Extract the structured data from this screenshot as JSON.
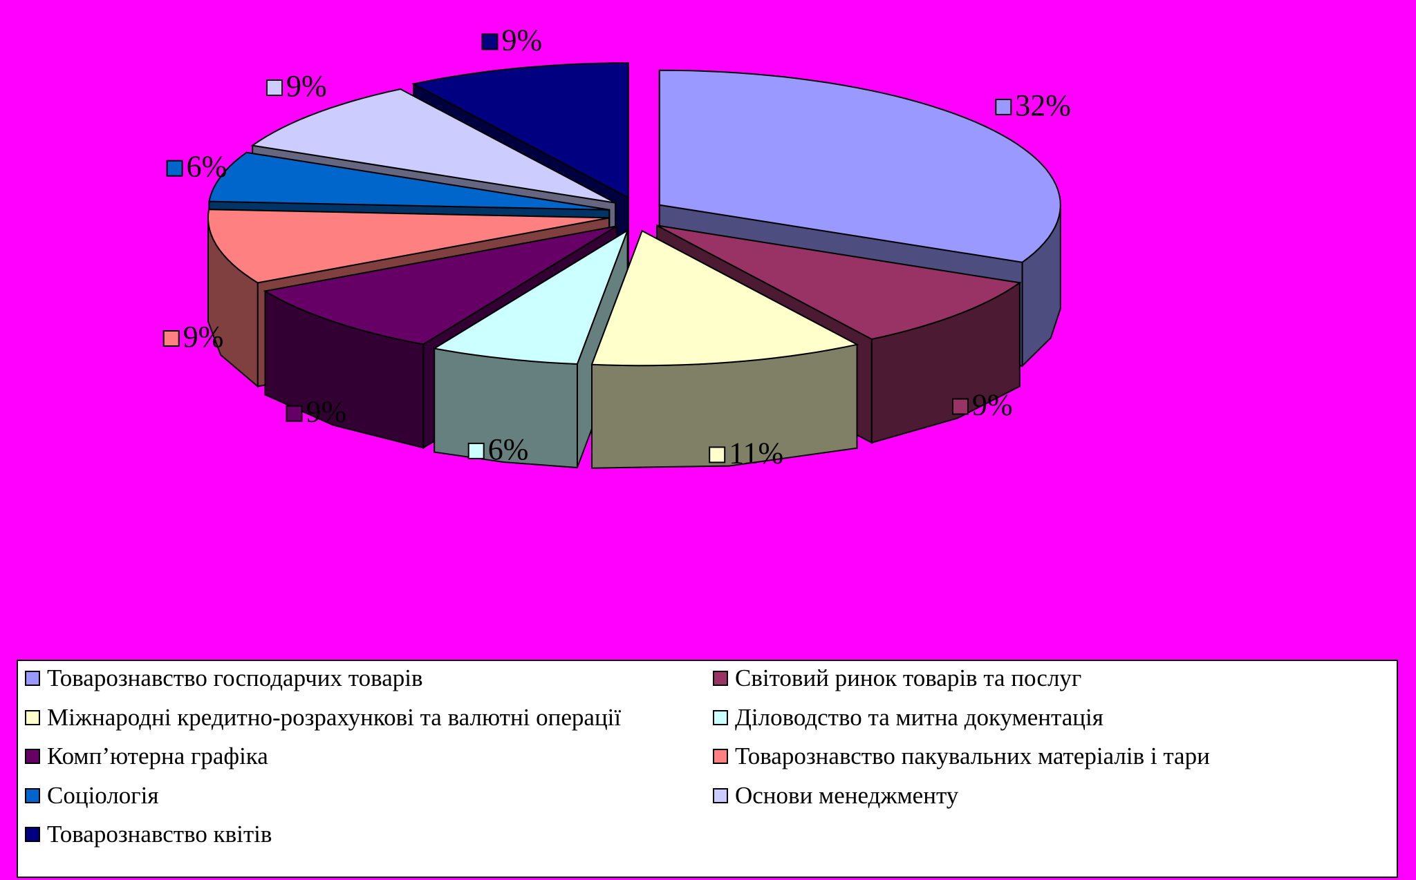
{
  "chart_data": {
    "type": "pie",
    "variant": "3d-exploded",
    "title": "",
    "slices": [
      {
        "label": "Товарознавство господарчих товарів",
        "value": 32,
        "display": "32%",
        "color": "#9999ff"
      },
      {
        "label": "Світовий ринок товарів та послуг",
        "value": 9,
        "display": "9%",
        "color": "#993366"
      },
      {
        "label": "Міжнародні кредитно-розрахункові та валютні операції",
        "value": 11,
        "display": "11%",
        "color": "#ffffcc"
      },
      {
        "label": "Діловодство та митна документація",
        "value": 6,
        "display": "6%",
        "color": "#ccffff"
      },
      {
        "label": "Комп’ютерна графіка",
        "value": 9,
        "display": "9%",
        "color": "#660066"
      },
      {
        "label": "Товарознавство пакувальних матеріалів і тари",
        "value": 9,
        "display": "9%",
        "color": "#ff8080"
      },
      {
        "label": "Соціологія",
        "value": 6,
        "display": "6%",
        "color": "#0066cc"
      },
      {
        "label": "Основи менеджменту",
        "value": 9,
        "display": "9%",
        "color": "#ccccff"
      },
      {
        "label": "Товарознавство квітів",
        "value": 9,
        "display": "9%",
        "color": "#000080"
      }
    ],
    "legend_position": "bottom",
    "background_color": "#ff00ff"
  }
}
